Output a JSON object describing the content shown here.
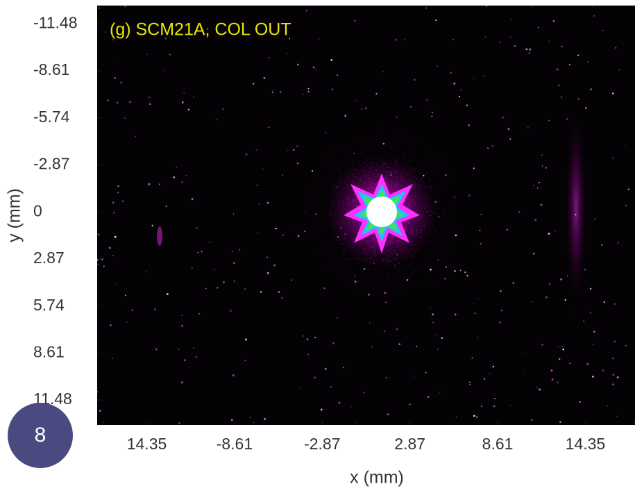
{
  "chart_data": {
    "type": "image",
    "title": "(g) SCM21A, COL OUT",
    "xlabel": "x (mm)",
    "ylabel": "y (mm)",
    "xlim": [
      -17.6,
      17.6
    ],
    "xticks": [
      {
        "value": -14.35,
        "label": "14.35"
      },
      -8.61,
      -2.87,
      2.87,
      8.61,
      14.35
    ],
    "ylim": [
      -12.6,
      13.0
    ],
    "yticks": [
      -11.48,
      -8.61,
      -5.74,
      -2.87,
      0,
      2.87,
      5.74,
      8.61,
      11.48
    ],
    "y_reversed": true,
    "badge": "8"
  }
}
